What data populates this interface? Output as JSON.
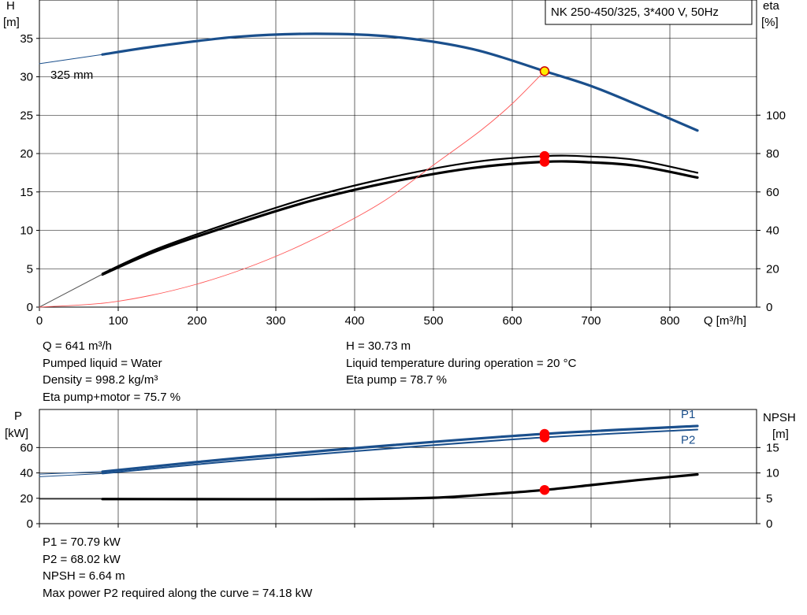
{
  "chart_data": [
    {
      "type": "line",
      "title": "NK 250-450/325, 3*400 V, 50Hz",
      "xlabel": "Q [m³/h]",
      "ylabel_left": [
        "H",
        "[m]"
      ],
      "ylabel_right": [
        "eta",
        "[%]"
      ],
      "xlim": [
        0,
        910
      ],
      "ylim_left": [
        0,
        40
      ],
      "ylim_right": [
        0,
        160
      ],
      "xticks": [
        0,
        100,
        200,
        300,
        400,
        500,
        600,
        700,
        800
      ],
      "yticks_left": [
        0,
        5,
        10,
        15,
        20,
        25,
        30,
        35
      ],
      "yticks_right": [
        0,
        20,
        40,
        60,
        80,
        100
      ],
      "grid": true,
      "annotation": "325 mm",
      "series": [
        {
          "axis": "left",
          "color": "#1a4f8c",
          "width": 3.2,
          "x": [
            80,
            150,
            250,
            350,
            450,
            550,
            641,
            700,
            760,
            835
          ],
          "y": [
            32.9,
            34.0,
            35.2,
            35.6,
            35.2,
            33.6,
            30.73,
            28.8,
            26.3,
            23.0
          ]
        },
        {
          "axis": "left",
          "color": "#1a4f8c",
          "width": 1,
          "x": [
            0,
            80
          ],
          "y": [
            31.7,
            32.9
          ]
        },
        {
          "axis": "right",
          "color": "#000000",
          "width": 2.2,
          "x": [
            80,
            150,
            250,
            350,
            450,
            550,
            641,
            700,
            760,
            835
          ],
          "y": [
            17.5,
            30.5,
            45.0,
            58.0,
            68.0,
            75.5,
            78.7,
            78.4,
            76.5,
            70.0
          ]
        },
        {
          "axis": "right",
          "color": "#000000",
          "width": 3.2,
          "x": [
            80,
            150,
            250,
            350,
            450,
            550,
            641,
            700,
            760,
            835
          ],
          "y": [
            17.0,
            29.5,
            43.5,
            56.0,
            65.5,
            72.5,
            75.7,
            75.4,
            73.5,
            67.5
          ]
        },
        {
          "axis": "right",
          "color": "#555555",
          "width": 1,
          "x": [
            0,
            80
          ],
          "y": [
            0,
            17.2
          ]
        },
        {
          "axis": "left",
          "color": "#ff5555",
          "width": 0.9,
          "x": [
            0,
            80,
            140,
            200,
            260,
            320,
            380,
            440,
            500,
            560,
            600,
            641
          ],
          "y": [
            0,
            0.5,
            1.5,
            3.0,
            5.0,
            7.5,
            10.5,
            14.0,
            18.5,
            23.0,
            26.5,
            30.73
          ]
        }
      ],
      "markers": [
        {
          "axis": "left",
          "x": 641,
          "y": 30.73,
          "fill": "#ffee00",
          "stroke": "#cc0000"
        },
        {
          "axis": "right",
          "x": 641,
          "y": 78.7,
          "fill": "#ff0000",
          "stroke": "#ff0000"
        },
        {
          "axis": "right",
          "x": 641,
          "y": 75.7,
          "fill": "#ff0000",
          "stroke": "#ff0000"
        }
      ]
    },
    {
      "type": "line",
      "ylabel_left": [
        "P",
        "[kW]"
      ],
      "ylabel_right": [
        "NPSH",
        "[m]"
      ],
      "xlim": [
        0,
        910
      ],
      "ylim_left": [
        0,
        90
      ],
      "ylim_right": [
        0,
        22.5
      ],
      "yticks_left": [
        0,
        20,
        40,
        60
      ],
      "yticks_right": [
        0,
        5,
        10,
        15
      ],
      "grid": true,
      "series": [
        {
          "name": "P1",
          "axis": "left",
          "color": "#1a4f8c",
          "width": 3.2,
          "x": [
            80,
            250,
            450,
            641,
            835
          ],
          "y": [
            41.0,
            51.5,
            62.0,
            70.79,
            77.0
          ]
        },
        {
          "name": "P2",
          "axis": "left",
          "color": "#1a4f8c",
          "width": 2,
          "x": [
            80,
            250,
            450,
            641,
            835
          ],
          "y": [
            39.5,
            49.5,
            59.5,
            68.02,
            74.18
          ]
        },
        {
          "axis": "left",
          "color": "#1a4f8c",
          "width": 1,
          "x": [
            0,
            80
          ],
          "y": [
            39.0,
            41.0
          ]
        },
        {
          "axis": "left",
          "color": "#1a4f8c",
          "width": 1,
          "x": [
            0,
            80
          ],
          "y": [
            37.0,
            39.5
          ]
        },
        {
          "axis": "right",
          "color": "#000000",
          "width": 3.2,
          "x": [
            80,
            200,
            300,
            400,
            500,
            580,
            641,
            700,
            760,
            835
          ],
          "y": [
            4.85,
            4.83,
            4.82,
            4.85,
            5.1,
            5.9,
            6.64,
            7.6,
            8.6,
            9.7
          ]
        },
        {
          "axis": "right",
          "color": "#000000",
          "width": 1,
          "x": [
            0,
            80
          ],
          "y": [
            4.85,
            4.85
          ]
        }
      ],
      "markers": [
        {
          "axis": "left",
          "x": 641,
          "y": 70.79,
          "fill": "#ff0000",
          "stroke": "#ff0000"
        },
        {
          "axis": "left",
          "x": 641,
          "y": 68.02,
          "fill": "#ff0000",
          "stroke": "#ff0000"
        },
        {
          "axis": "right",
          "x": 641,
          "y": 6.64,
          "fill": "#ff0000",
          "stroke": "#ff0000"
        }
      ]
    }
  ],
  "info_top_left": [
    "Q = 641 m³/h",
    "Pumped liquid = Water",
    "Density = 998.2 kg/m³",
    "Eta pump+motor = 75.7 %"
  ],
  "info_top_right": [
    "H = 30.73 m",
    "Liquid temperature during operation = 20 °C",
    "Eta pump = 78.7 %"
  ],
  "info_bottom": [
    "P1 = 70.79 kW",
    "P2 = 68.02 kW",
    "NPSH = 6.64 m",
    "Max power P2 required along the curve = 74.18 kW"
  ]
}
